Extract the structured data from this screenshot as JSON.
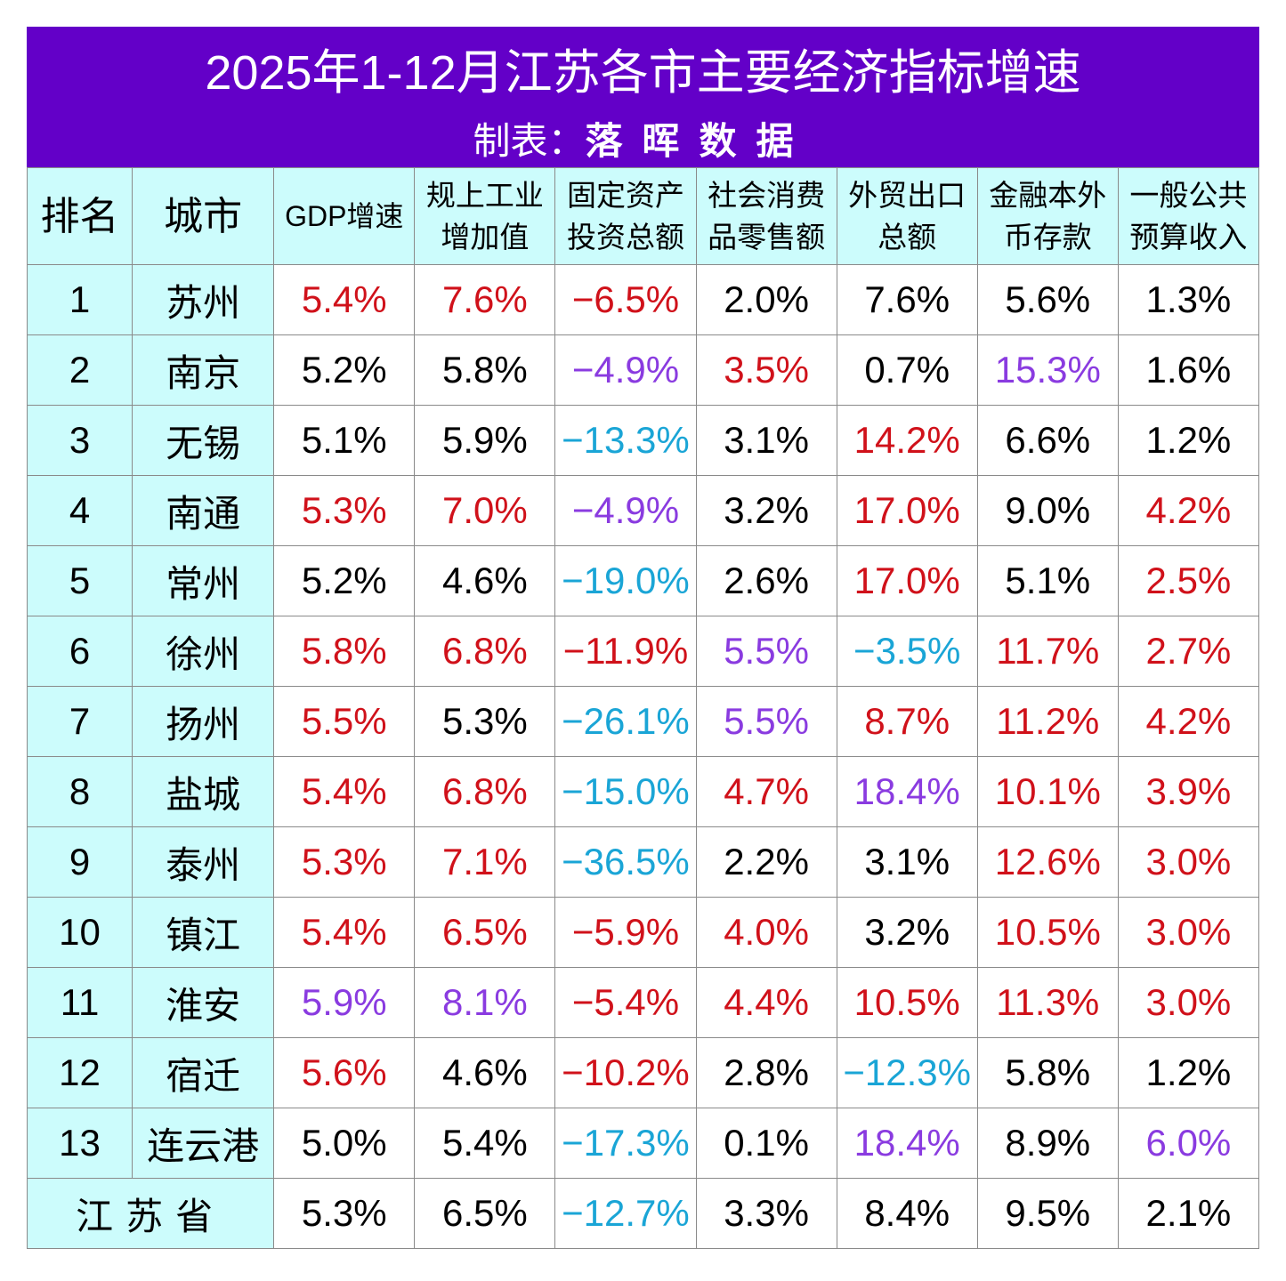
{
  "header": {
    "title": "2025年1-12月江苏各市主要经济指标增速",
    "credit_label": "制表：",
    "credit_source": "落晖数据"
  },
  "colors": {
    "title_band": "#6300c8",
    "header_bg": "#ccfcfc",
    "red": "#d0111a",
    "purple": "#8a3be0",
    "cyan": "#1aa5d6",
    "black": "#000000"
  },
  "columns": {
    "rank": "排名",
    "city": "城市",
    "gdp": "GDP增速",
    "industry_l1": "规上工业",
    "industry_l2": "增加值",
    "fai_l1": "固定资产",
    "fai_l2": "投资总额",
    "retail_l1": "社会消费",
    "retail_l2": "品零售额",
    "export_l1": "外贸出口",
    "export_l2": "总额",
    "deposit_l1": "金融本外",
    "deposit_l2": "币存款",
    "budget_l1": "一般公共",
    "budget_l2": "预算收入"
  },
  "rows": [
    {
      "rank": "1",
      "city": "苏州",
      "v": [
        "5.4%",
        "7.6%",
        "−6.5%",
        "2.0%",
        "7.6%",
        "5.6%",
        "1.3%"
      ],
      "c": [
        "red",
        "red",
        "red",
        "black",
        "black",
        "black",
        "black"
      ]
    },
    {
      "rank": "2",
      "city": "南京",
      "v": [
        "5.2%",
        "5.8%",
        "−4.9%",
        "3.5%",
        "0.7%",
        "15.3%",
        "1.6%"
      ],
      "c": [
        "black",
        "black",
        "purple",
        "red",
        "black",
        "purple",
        "black"
      ]
    },
    {
      "rank": "3",
      "city": "无锡",
      "v": [
        "5.1%",
        "5.9%",
        "−13.3%",
        "3.1%",
        "14.2%",
        "6.6%",
        "1.2%"
      ],
      "c": [
        "black",
        "black",
        "cyan",
        "black",
        "red",
        "black",
        "black"
      ]
    },
    {
      "rank": "4",
      "city": "南通",
      "v": [
        "5.3%",
        "7.0%",
        "−4.9%",
        "3.2%",
        "17.0%",
        "9.0%",
        "4.2%"
      ],
      "c": [
        "red",
        "red",
        "purple",
        "black",
        "red",
        "black",
        "red"
      ]
    },
    {
      "rank": "5",
      "city": "常州",
      "v": [
        "5.2%",
        "4.6%",
        "−19.0%",
        "2.6%",
        "17.0%",
        "5.1%",
        "2.5%"
      ],
      "c": [
        "black",
        "black",
        "cyan",
        "black",
        "red",
        "black",
        "red"
      ]
    },
    {
      "rank": "6",
      "city": "徐州",
      "v": [
        "5.8%",
        "6.8%",
        "−11.9%",
        "5.5%",
        "−3.5%",
        "11.7%",
        "2.7%"
      ],
      "c": [
        "red",
        "red",
        "red",
        "purple",
        "cyan",
        "red",
        "red"
      ]
    },
    {
      "rank": "7",
      "city": "扬州",
      "v": [
        "5.5%",
        "5.3%",
        "−26.1%",
        "5.5%",
        "8.7%",
        "11.2%",
        "4.2%"
      ],
      "c": [
        "red",
        "black",
        "cyan",
        "purple",
        "red",
        "red",
        "red"
      ]
    },
    {
      "rank": "8",
      "city": "盐城",
      "v": [
        "5.4%",
        "6.8%",
        "−15.0%",
        "4.7%",
        "18.4%",
        "10.1%",
        "3.9%"
      ],
      "c": [
        "red",
        "red",
        "cyan",
        "red",
        "purple",
        "red",
        "red"
      ]
    },
    {
      "rank": "9",
      "city": "泰州",
      "v": [
        "5.3%",
        "7.1%",
        "−36.5%",
        "2.2%",
        "3.1%",
        "12.6%",
        "3.0%"
      ],
      "c": [
        "red",
        "red",
        "cyan",
        "black",
        "black",
        "red",
        "red"
      ]
    },
    {
      "rank": "10",
      "city": "镇江",
      "v": [
        "5.4%",
        "6.5%",
        "−5.9%",
        "4.0%",
        "3.2%",
        "10.5%",
        "3.0%"
      ],
      "c": [
        "red",
        "red",
        "red",
        "red",
        "black",
        "red",
        "red"
      ]
    },
    {
      "rank": "11",
      "city": "淮安",
      "v": [
        "5.9%",
        "8.1%",
        "−5.4%",
        "4.4%",
        "10.5%",
        "11.3%",
        "3.0%"
      ],
      "c": [
        "purple",
        "purple",
        "red",
        "red",
        "red",
        "red",
        "red"
      ]
    },
    {
      "rank": "12",
      "city": "宿迁",
      "v": [
        "5.6%",
        "4.6%",
        "−10.2%",
        "2.8%",
        "−12.3%",
        "5.8%",
        "1.2%"
      ],
      "c": [
        "red",
        "black",
        "red",
        "black",
        "cyan",
        "black",
        "black"
      ]
    },
    {
      "rank": "13",
      "city": "连云港",
      "v": [
        "5.0%",
        "5.4%",
        "−17.3%",
        "0.1%",
        "18.4%",
        "8.9%",
        "6.0%"
      ],
      "c": [
        "black",
        "black",
        "cyan",
        "black",
        "purple",
        "black",
        "purple"
      ]
    }
  ],
  "province": {
    "label": "江苏省",
    "v": [
      "5.3%",
      "6.5%",
      "−12.7%",
      "3.3%",
      "8.4%",
      "9.5%",
      "2.1%"
    ],
    "c": [
      "black",
      "black",
      "cyan",
      "black",
      "black",
      "black",
      "black"
    ]
  }
}
